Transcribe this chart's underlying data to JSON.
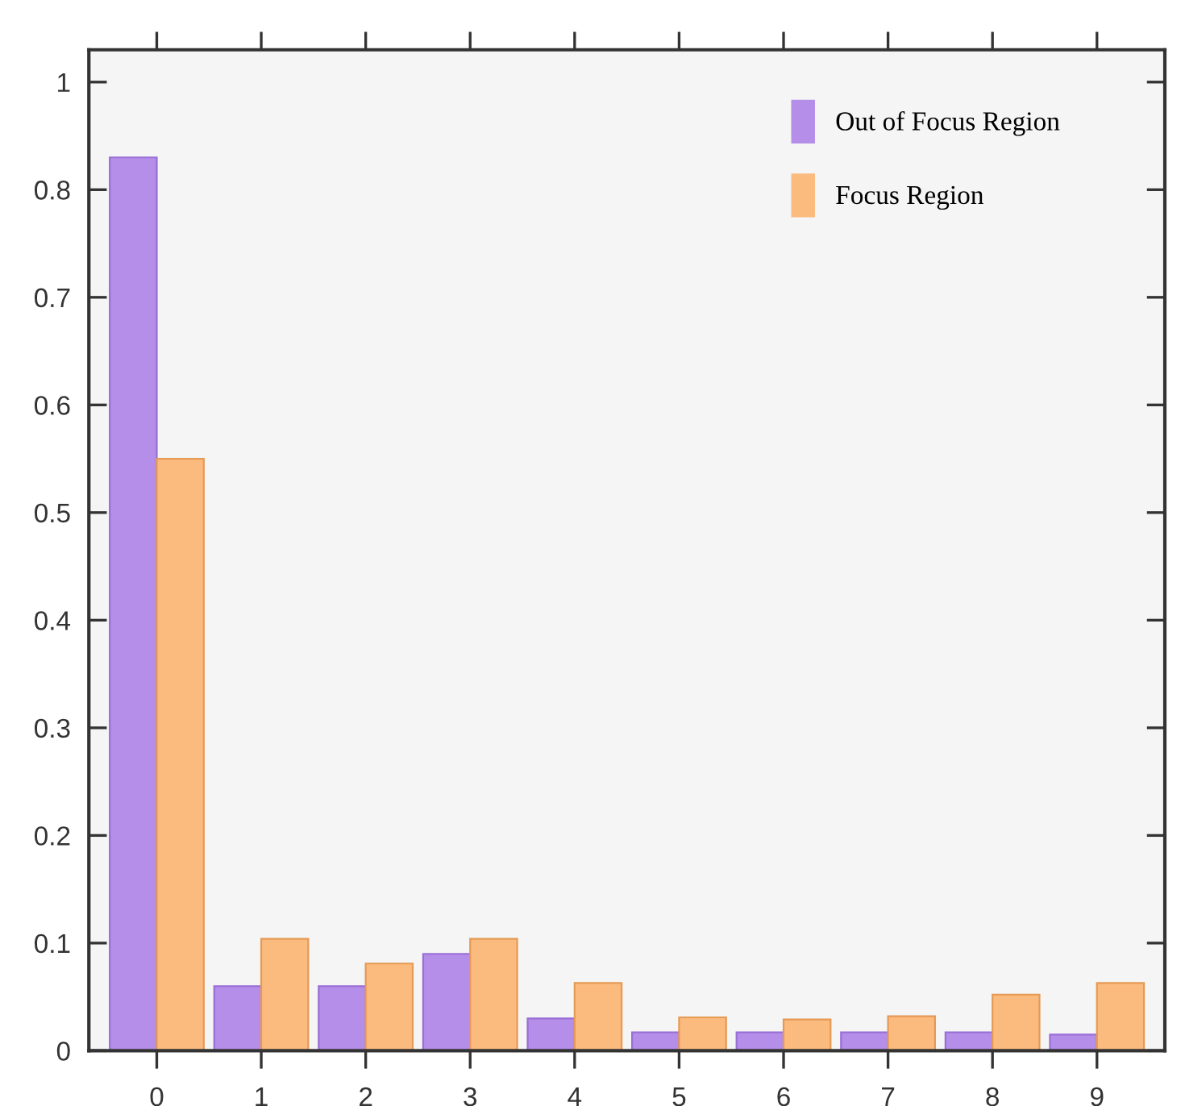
{
  "chart_data": {
    "type": "bar",
    "categories": [
      "0",
      "1",
      "2",
      "3",
      "4",
      "5",
      "6",
      "7",
      "8",
      "9"
    ],
    "series": [
      {
        "name": "Out of Focus Region",
        "color": "#b48ee8",
        "values": [
          0.83,
          0.06,
          0.06,
          0.09,
          0.03,
          0.017,
          0.017,
          0.017,
          0.017,
          0.015
        ]
      },
      {
        "name": "Focus Region",
        "color": "#fbba7e",
        "values": [
          0.55,
          0.104,
          0.081,
          0.104,
          0.063,
          0.031,
          0.029,
          0.032,
          0.052,
          0.063
        ]
      }
    ],
    "ylim": [
      0,
      0.93
    ],
    "yticks": [
      0,
      0.1,
      0.2,
      0.3,
      0.4,
      0.5,
      0.6,
      0.7,
      0.8,
      {
        "value": 0.9,
        "label": "1"
      }
    ],
    "grid": false,
    "legend": "top right"
  }
}
